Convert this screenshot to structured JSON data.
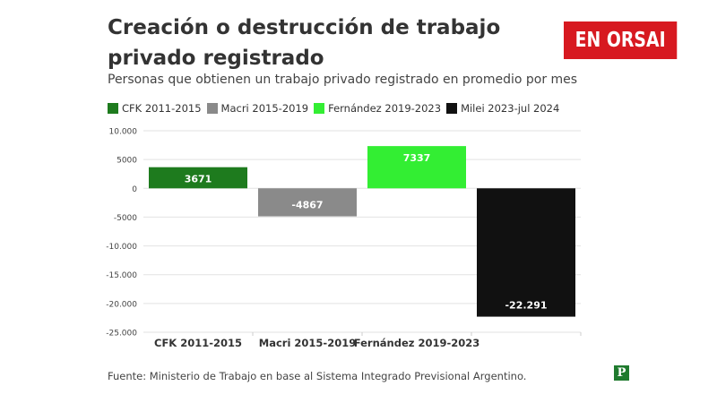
{
  "header": {
    "title": "Creación o destrucción de trabajo privado registrado",
    "subtitle": "Personas que obtienen un trabajo privado registrado en promedio por mes",
    "logo_text": "EN ORSAI"
  },
  "legend": [
    {
      "label": "CFK 2011-2015",
      "color": "#1e7b1e"
    },
    {
      "label": "Macri 2015-2019",
      "color": "#8a8a8a"
    },
    {
      "label": "Fernández 2019-2023",
      "color": "#33ee33"
    },
    {
      "label": "Milei 2023-jul 2024",
      "color": "#111111"
    }
  ],
  "chart_data": {
    "type": "bar",
    "title": "Creación o destrucción de trabajo privado registrado",
    "subtitle": "Personas que obtienen un trabajo privado registrado en promedio por mes",
    "categories": [
      "CFK 2011-2015",
      "Macri 2015-2019",
      "Fernández 2019-2023",
      ""
    ],
    "values": [
      3671,
      -4867,
      7337,
      -22291
    ],
    "data_labels": [
      "3671",
      "-4867",
      "7337",
      "-22.291"
    ],
    "colors": [
      "#1e7b1e",
      "#8a8a8a",
      "#33ee33",
      "#111111"
    ],
    "ylim": [
      -25000,
      10000
    ],
    "yticks": [
      10000,
      5000,
      0,
      -5000,
      -10000,
      -15000,
      -20000,
      -25000
    ],
    "ytick_labels": [
      "10.000",
      "5000",
      "0",
      "-5000",
      "-10.000",
      "-15.000",
      "-20.000",
      "-25.000"
    ],
    "grid": true,
    "legend_position": "top-left"
  },
  "footer": {
    "source": "Fuente: Ministerio de Trabajo en base al Sistema Integrado Previsional Argentino.",
    "badge": "P"
  }
}
